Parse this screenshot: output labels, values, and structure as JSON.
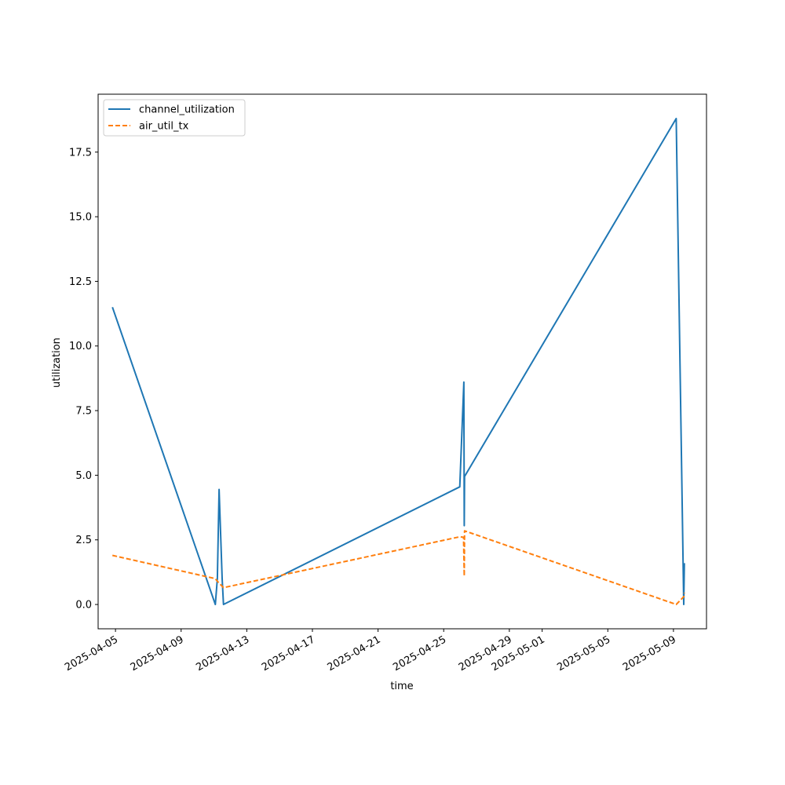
{
  "chart_data": {
    "type": "line",
    "xlabel": "time",
    "ylabel": "utilization",
    "xlim": [
      "2025-04-03T22:37",
      "2025-05-11T00:20"
    ],
    "ylim": [
      -0.94,
      19.74
    ],
    "x_ticks": [
      "2025-04-05",
      "2025-04-09",
      "2025-04-13",
      "2025-04-17",
      "2025-04-21",
      "2025-04-25",
      "2025-04-29",
      "2025-05-01",
      "2025-05-05",
      "2025-05-09"
    ],
    "y_ticks": [
      "0.0",
      "2.5",
      "5.0",
      "7.5",
      "10.0",
      "12.5",
      "15.0",
      "17.5"
    ],
    "legend_position": "top-left",
    "series": [
      {
        "name": "channel_utilization",
        "color": "#1f77b4",
        "style": "solid",
        "points": [
          {
            "x": "2025-04-04T19:30",
            "y": 11.5
          },
          {
            "x": "2025-04-11T02:00",
            "y": 0.0
          },
          {
            "x": "2025-04-11T05:00",
            "y": 1.0
          },
          {
            "x": "2025-04-11T07:30",
            "y": 4.45
          },
          {
            "x": "2025-04-11T12:00",
            "y": 1.0
          },
          {
            "x": "2025-04-11T14:00",
            "y": 0.0
          },
          {
            "x": "2025-04-25T23:30",
            "y": 4.55
          },
          {
            "x": "2025-04-26T05:30",
            "y": 8.6
          },
          {
            "x": "2025-04-26T06:00",
            "y": 3.05
          },
          {
            "x": "2025-04-26T06:30",
            "y": 4.95
          },
          {
            "x": "2025-05-09T04:00",
            "y": 18.8
          },
          {
            "x": "2025-05-09T15:00",
            "y": 0.0
          },
          {
            "x": "2025-05-09T16:00",
            "y": 1.6
          }
        ]
      },
      {
        "name": "air_util_tx",
        "color": "#ff7f0e",
        "style": "dashed",
        "points": [
          {
            "x": "2025-04-04T19:30",
            "y": 1.9
          },
          {
            "x": "2025-04-11T02:00",
            "y": 1.0
          },
          {
            "x": "2025-04-11T05:00",
            "y": 0.9
          },
          {
            "x": "2025-04-11T14:00",
            "y": 0.65
          },
          {
            "x": "2025-04-25T23:30",
            "y": 2.62
          },
          {
            "x": "2025-04-26T05:00",
            "y": 2.6
          },
          {
            "x": "2025-04-26T06:00",
            "y": 1.1
          },
          {
            "x": "2025-04-26T06:30",
            "y": 2.85
          },
          {
            "x": "2025-05-09T04:00",
            "y": 0.0
          },
          {
            "x": "2025-05-09T15:00",
            "y": 0.3
          },
          {
            "x": "2025-05-09T16:00",
            "y": 0.45
          }
        ]
      }
    ]
  }
}
